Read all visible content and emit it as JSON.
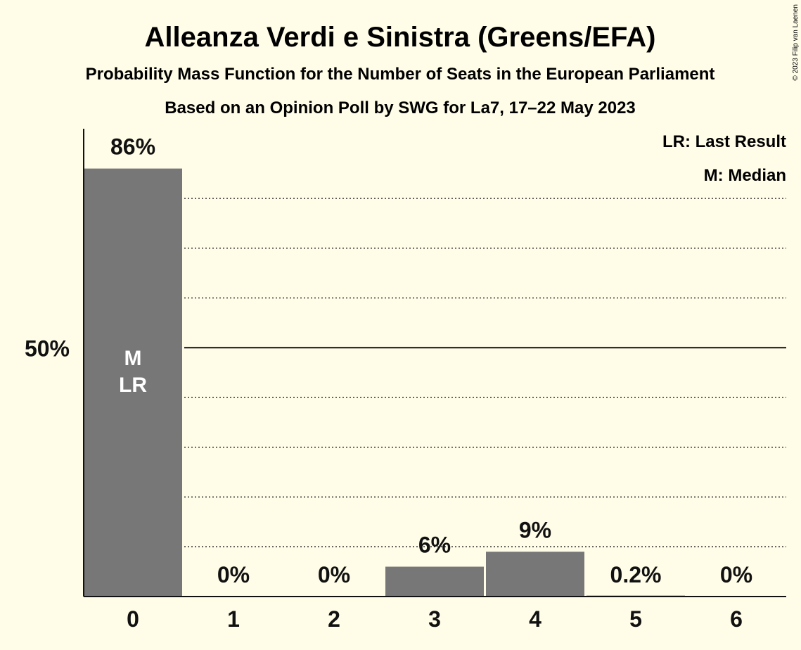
{
  "header": {
    "title": "Alleanza Verdi e Sinistra (Greens/EFA)",
    "subtitle": "Probability Mass Function for the Number of Seats in the European Parliament",
    "subtitle2": "Based on an Opinion Poll by SWG for La7, 17–22 May 2023",
    "copyright": "© 2023 Filip van Laenen"
  },
  "legend": {
    "last_result": "LR: Last Result",
    "median": "M: Median"
  },
  "colors": {
    "background": "#fffde8",
    "bar": "#777777",
    "text": "#111111",
    "marker_text": "#ffffff"
  },
  "chart_data": {
    "type": "bar",
    "title": "Alleanza Verdi e Sinistra (Greens/EFA)",
    "categories": [
      "0",
      "1",
      "2",
      "3",
      "4",
      "5",
      "6"
    ],
    "values": [
      86,
      0,
      0,
      6,
      9,
      0.2,
      0
    ],
    "value_labels": [
      "86%",
      "0%",
      "0%",
      "6%",
      "9%",
      "0.2%",
      "0%"
    ],
    "ylim": [
      0,
      94
    ],
    "yticks": [
      {
        "value": 50,
        "label": "50%"
      }
    ],
    "gridlines": [
      10,
      20,
      30,
      40,
      60,
      70,
      80
    ],
    "reference_line": 50,
    "bar_markers": [
      {
        "category": "0",
        "lines": [
          "M",
          "LR"
        ]
      }
    ],
    "grid": true,
    "legend_position": "top-right"
  }
}
